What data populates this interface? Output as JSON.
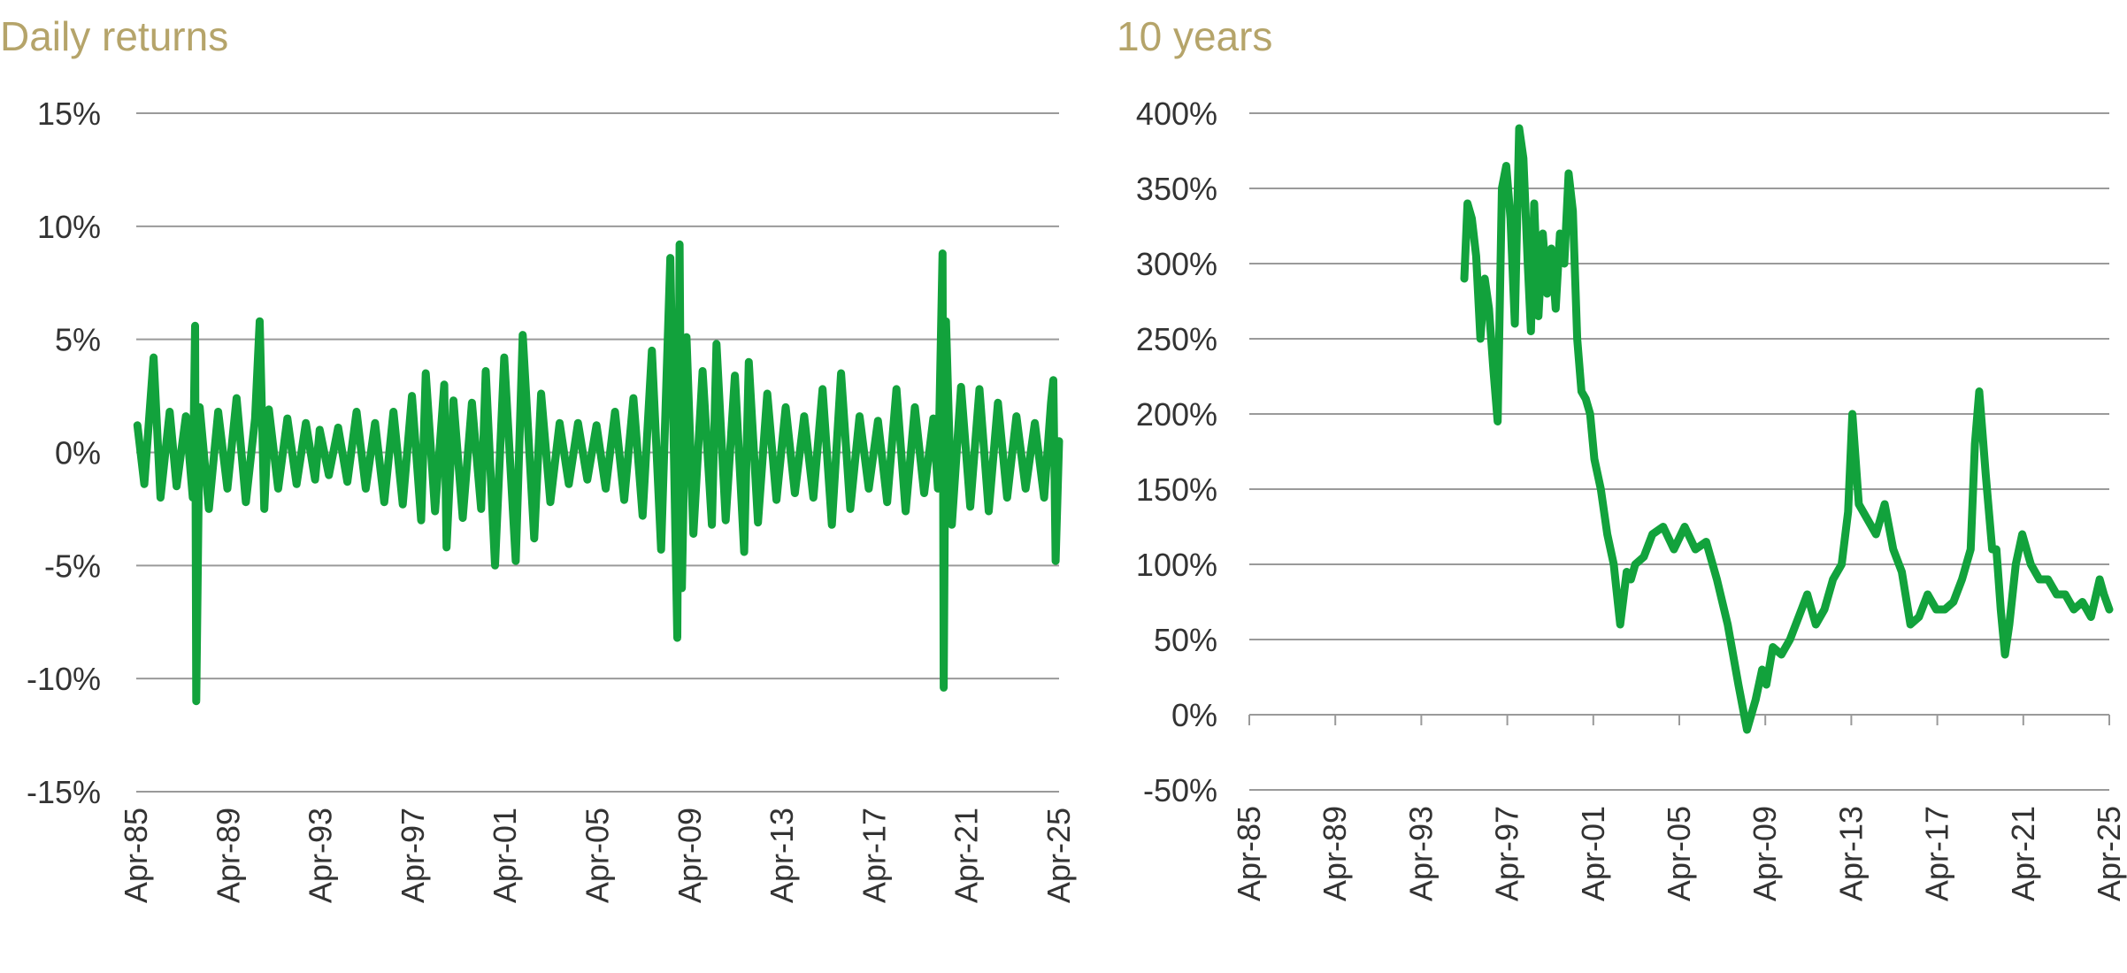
{
  "chart_data": [
    {
      "type": "line",
      "title": "Daily returns",
      "xlabel": "",
      "ylabel": "",
      "x_tick_labels": [
        "Apr-85",
        "Apr-89",
        "Apr-93",
        "Apr-97",
        "Apr-01",
        "Apr-05",
        "Apr-09",
        "Apr-13",
        "Apr-17",
        "Apr-21",
        "Apr-25"
      ],
      "x_range": [
        1985.25,
        2025.25
      ],
      "y_tick_labels": [
        "15%",
        "10%",
        "5%",
        "0%",
        "-5%",
        "-10%",
        "-15%"
      ],
      "ylim": [
        -15,
        15
      ],
      "y_ticks": [
        15,
        10,
        5,
        0,
        -5,
        -10,
        -15
      ],
      "grid": true,
      "series": [
        {
          "color": "#12a23c",
          "x": [
            1985.3,
            1985.6,
            1986.0,
            1986.3,
            1986.7,
            1987.0,
            1987.4,
            1987.7,
            1987.8,
            1987.85,
            1988.0,
            1988.4,
            1988.8,
            1989.2,
            1989.6,
            1990.0,
            1990.4,
            1990.6,
            1990.8,
            1991.0,
            1991.4,
            1991.8,
            1992.2,
            1992.6,
            1993.0,
            1993.2,
            1993.6,
            1994.0,
            1994.4,
            1994.8,
            1995.2,
            1995.6,
            1996.0,
            1996.4,
            1996.8,
            1997.2,
            1997.6,
            1997.8,
            1998.2,
            1998.6,
            1998.7,
            1999.0,
            1999.4,
            1999.8,
            2000.2,
            2000.4,
            2000.8,
            2001.2,
            2001.7,
            2002.0,
            2002.5,
            2002.8,
            2003.2,
            2003.6,
            2004.0,
            2004.4,
            2004.8,
            2005.2,
            2005.6,
            2006.0,
            2006.4,
            2006.8,
            2007.2,
            2007.6,
            2008.0,
            2008.4,
            2008.7,
            2008.8,
            2008.9,
            2009.1,
            2009.4,
            2009.8,
            2010.2,
            2010.4,
            2010.8,
            2011.2,
            2011.6,
            2011.8,
            2012.2,
            2012.6,
            2013.0,
            2013.4,
            2013.8,
            2014.2,
            2014.6,
            2015.0,
            2015.4,
            2015.8,
            2016.2,
            2016.6,
            2017.0,
            2017.4,
            2017.8,
            2018.2,
            2018.6,
            2019.0,
            2019.4,
            2019.8,
            2020.0,
            2020.2,
            2020.25,
            2020.35,
            2020.6,
            2021.0,
            2021.4,
            2021.8,
            2022.2,
            2022.6,
            2023.0,
            2023.4,
            2023.8,
            2024.2,
            2024.6,
            2024.9,
            2025.0,
            2025.1,
            2025.25
          ],
          "values": [
            1.2,
            -1.4,
            4.2,
            -2.0,
            1.8,
            -1.5,
            1.6,
            -2.0,
            5.6,
            -11.0,
            2.0,
            -2.5,
            1.8,
            -1.6,
            2.4,
            -2.2,
            1.5,
            5.8,
            -2.5,
            1.9,
            -1.6,
            1.5,
            -1.4,
            1.3,
            -1.2,
            1.0,
            -1.0,
            1.1,
            -1.3,
            1.8,
            -1.6,
            1.3,
            -2.2,
            1.8,
            -2.3,
            2.5,
            -3.0,
            3.5,
            -2.6,
            3.0,
            -4.2,
            2.3,
            -2.9,
            2.2,
            -2.5,
            3.6,
            -5.0,
            4.2,
            -4.8,
            5.2,
            -3.8,
            2.6,
            -2.2,
            1.3,
            -1.4,
            1.3,
            -1.2,
            1.2,
            -1.6,
            1.8,
            -2.1,
            2.4,
            -2.8,
            4.5,
            -4.3,
            8.6,
            -8.2,
            9.2,
            -6.0,
            5.1,
            -3.6,
            3.6,
            -3.2,
            4.8,
            -3.0,
            3.4,
            -4.4,
            4.0,
            -3.1,
            2.6,
            -2.1,
            2.0,
            -1.8,
            1.6,
            -2.0,
            2.8,
            -3.2,
            3.5,
            -2.5,
            1.6,
            -1.6,
            1.4,
            -2.2,
            2.8,
            -2.6,
            2.0,
            -1.8,
            1.5,
            -1.6,
            8.8,
            -10.4,
            5.8,
            -3.2,
            2.9,
            -2.4,
            2.8,
            -2.6,
            2.2,
            -2.0,
            1.6,
            -1.6,
            1.3,
            -2.0,
            2.2,
            3.2,
            -4.8,
            0.5
          ]
        }
      ]
    },
    {
      "type": "line",
      "title": "10 years",
      "xlabel": "",
      "ylabel": "",
      "x_tick_labels": [
        "Apr-85",
        "Apr-89",
        "Apr-93",
        "Apr-97",
        "Apr-01",
        "Apr-05",
        "Apr-09",
        "Apr-13",
        "Apr-17",
        "Apr-21",
        "Apr-25"
      ],
      "x_range": [
        1985.25,
        2025.25
      ],
      "y_tick_labels": [
        "400%",
        "350%",
        "300%",
        "250%",
        "200%",
        "150%",
        "100%",
        "50%",
        "0%",
        "-50%"
      ],
      "ylim": [
        -50,
        400
      ],
      "y_ticks": [
        400,
        350,
        300,
        250,
        200,
        150,
        100,
        50,
        0,
        -50
      ],
      "grid": true,
      "series": [
        {
          "color": "#12a23c",
          "x": [
            1995.25,
            1995.4,
            1995.6,
            1995.8,
            1996.0,
            1996.2,
            1996.4,
            1996.6,
            1996.8,
            1997.0,
            1997.2,
            1997.4,
            1997.6,
            1997.8,
            1998.0,
            1998.2,
            1998.35,
            1998.5,
            1998.7,
            1998.9,
            1999.1,
            1999.3,
            1999.5,
            1999.7,
            1999.9,
            2000.1,
            2000.3,
            2000.5,
            2000.7,
            2000.9,
            2001.1,
            2001.3,
            2001.6,
            2001.9,
            2002.2,
            2002.5,
            2002.8,
            2003.0,
            2003.2,
            2003.6,
            2004.0,
            2004.5,
            2005.0,
            2005.5,
            2006.0,
            2006.5,
            2007.0,
            2007.5,
            2008.0,
            2008.4,
            2008.8,
            2009.1,
            2009.3,
            2009.6,
            2010.0,
            2010.4,
            2010.8,
            2011.2,
            2011.6,
            2012.0,
            2012.4,
            2012.8,
            2013.1,
            2013.3,
            2013.6,
            2014.0,
            2014.4,
            2014.8,
            2015.2,
            2015.6,
            2016.0,
            2016.4,
            2016.8,
            2017.2,
            2017.6,
            2018.0,
            2018.4,
            2018.8,
            2019.0,
            2019.2,
            2019.5,
            2019.8,
            2020.0,
            2020.2,
            2020.4,
            2020.6,
            2020.9,
            2021.2,
            2021.6,
            2022.0,
            2022.4,
            2022.8,
            2023.2,
            2023.6,
            2024.0,
            2024.4,
            2024.8,
            2025.0,
            2025.25
          ],
          "values": [
            290,
            340,
            330,
            305,
            250,
            290,
            270,
            230,
            195,
            350,
            365,
            330,
            260,
            390,
            370,
            300,
            255,
            340,
            265,
            320,
            280,
            310,
            270,
            320,
            300,
            360,
            335,
            250,
            215,
            210,
            200,
            170,
            150,
            120,
            100,
            60,
            95,
            90,
            100,
            105,
            120,
            125,
            110,
            125,
            110,
            115,
            90,
            60,
            20,
            -10,
            10,
            30,
            20,
            45,
            40,
            50,
            65,
            80,
            60,
            70,
            90,
            100,
            135,
            200,
            140,
            130,
            120,
            140,
            110,
            95,
            60,
            65,
            80,
            70,
            70,
            75,
            90,
            110,
            180,
            215,
            160,
            110,
            110,
            70,
            40,
            60,
            100,
            120,
            100,
            90,
            90,
            80,
            80,
            70,
            75,
            65,
            90,
            80,
            70
          ]
        }
      ]
    }
  ]
}
